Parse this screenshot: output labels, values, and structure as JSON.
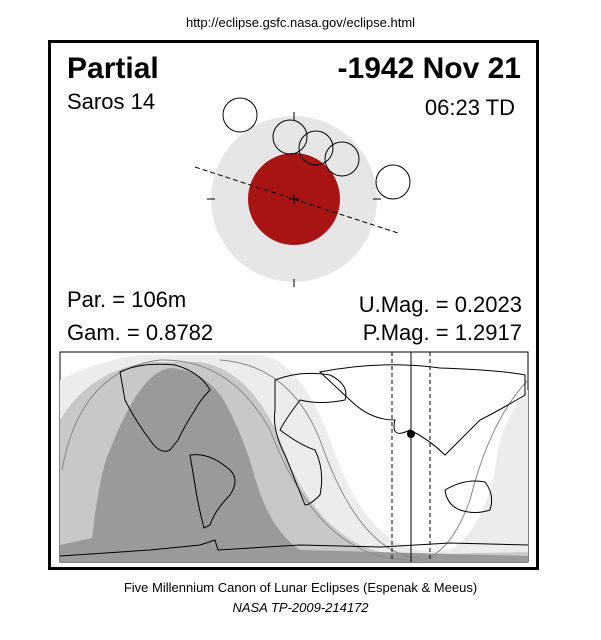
{
  "url": "http://eclipse.gsfc.nasa.gov/eclipse.html",
  "eclipse": {
    "type": "Partial",
    "date": "-1942 Nov 21",
    "saros": "Saros  14",
    "time": "06:23 TD",
    "duration": "Par. = 106m",
    "gamma": "Gam. = 0.8782",
    "umbral_magnitude": "U.Mag. = 0.2023",
    "penumbral_magnitude": "P.Mag. = 1.2917"
  },
  "colors": {
    "umbra": "#a81414",
    "penumbra": "#e6e6e6",
    "map_dark": "#9a9a9a",
    "map_mid": "#c8c8c8",
    "map_light": "#ececec"
  },
  "footer": {
    "credit": "Five Millennium Canon of Lunar Eclipses (Espenak & Meeus)",
    "publication": "NASA TP-2009-214172"
  }
}
